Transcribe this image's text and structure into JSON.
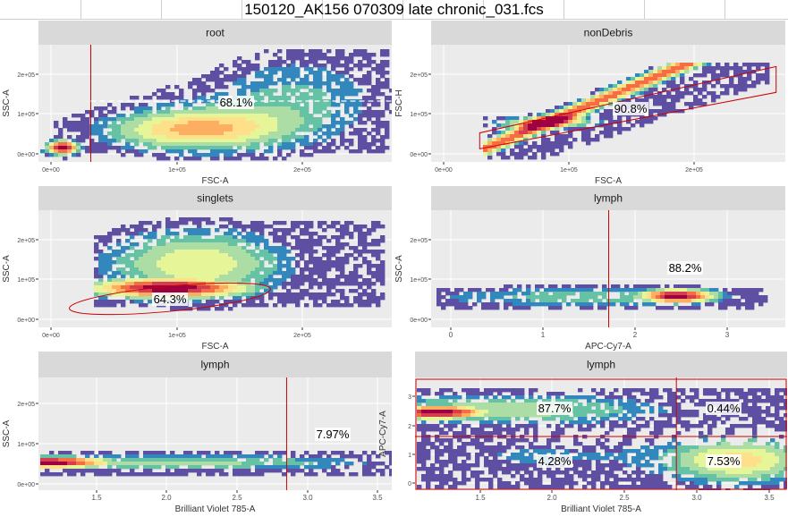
{
  "window": {
    "title": "150120_AK156 070309 late chronic_031.fcs"
  },
  "colors": {
    "panel_bg": "#ebebeb",
    "grid": "#ffffff",
    "strip": "#d9d9d9",
    "gate": "#cc0000",
    "density_scale": [
      "#5e4fa2",
      "#3288bd",
      "#66c2a5",
      "#abdda4",
      "#e6f598",
      "#fee08b",
      "#fdae61",
      "#f46d43",
      "#d53e4f",
      "#9e0142"
    ]
  },
  "chart_data": [
    {
      "type": "heatmap",
      "title": "root",
      "xlabel": "FSC-A",
      "ylabel": "SSC-A",
      "x_ticks": [
        "0e+00",
        "1e+05",
        "2e+05"
      ],
      "y_ticks": [
        "0e+00",
        "1e+05",
        "2e+05"
      ],
      "xlim": [
        -5000,
        265000
      ],
      "ylim": [
        -15000,
        280000
      ],
      "gate": {
        "shape": "threshold",
        "x": 35000,
        "label": "68.1%"
      }
    },
    {
      "type": "heatmap",
      "title": "nonDebris",
      "xlabel": "FSC-A",
      "ylabel": "FSC-H",
      "x_ticks": [
        "0e+00",
        "1e+05",
        "2e+05"
      ],
      "y_ticks": [
        "0e+00",
        "1e+05",
        "2e+05"
      ],
      "xlim": [
        -5000,
        265000
      ],
      "ylim": [
        -15000,
        280000
      ],
      "gate": {
        "shape": "polygon",
        "vertices": [
          [
            32000,
            18000
          ],
          [
            32000,
            58000
          ],
          [
            258000,
            225000
          ],
          [
            258000,
            160000
          ]
        ],
        "label": "90.8%"
      }
    },
    {
      "type": "heatmap",
      "title": "singlets",
      "xlabel": "FSC-A",
      "ylabel": "SSC-A",
      "x_ticks": [
        "0e+00",
        "1e+05",
        "2e+05"
      ],
      "y_ticks": [
        "0e+00",
        "1e+05",
        "2e+05"
      ],
      "xlim": [
        -5000,
        265000
      ],
      "ylim": [
        -15000,
        280000
      ],
      "gate": {
        "shape": "ellipse",
        "label": "64.3%"
      }
    },
    {
      "type": "heatmap",
      "title": "lymph",
      "xlabel": "APC-Cy7-A",
      "ylabel": "SSC-A",
      "x_ticks": [
        "0",
        "1",
        "2",
        "3"
      ],
      "y_ticks": [
        "0e+00",
        "1e+05",
        "2e+05"
      ],
      "xlim": [
        -0.25,
        3.5
      ],
      "ylim": [
        -15000,
        280000
      ],
      "gate": {
        "shape": "threshold",
        "x": 1.63,
        "label": "88.2%"
      }
    },
    {
      "type": "heatmap",
      "title": "lymph",
      "xlabel": "Brilliant Violet 785-A",
      "ylabel": "SSC-A",
      "x_ticks": [
        "1.5",
        "2.0",
        "2.5",
        "3.0",
        "3.5"
      ],
      "y_ticks": [
        "0e+00",
        "1e+05",
        "2e+05"
      ],
      "xlim": [
        1.1,
        3.62
      ],
      "ylim": [
        -15000,
        280000
      ],
      "gate": {
        "shape": "threshold",
        "x": 2.87,
        "label": "7.97%"
      }
    },
    {
      "type": "heatmap",
      "title": "lymph",
      "xlabel": "Brilliant Violet 785-A",
      "ylabel": "APC-Cy7-A",
      "x_ticks": [
        "1.5",
        "2.0",
        "2.5",
        "3.0",
        "3.5"
      ],
      "y_ticks": [
        "0",
        "1",
        "2",
        "3"
      ],
      "xlim": [
        1.1,
        3.62
      ],
      "ylim": [
        -0.3,
        3.75
      ],
      "gate": {
        "shape": "quadrant",
        "x": 2.87,
        "y": 1.63,
        "labels": {
          "top_left": "87.7%",
          "top_right": "0.44%",
          "bottom_left": "4.28%",
          "bottom_right": "7.53%"
        }
      }
    }
  ]
}
